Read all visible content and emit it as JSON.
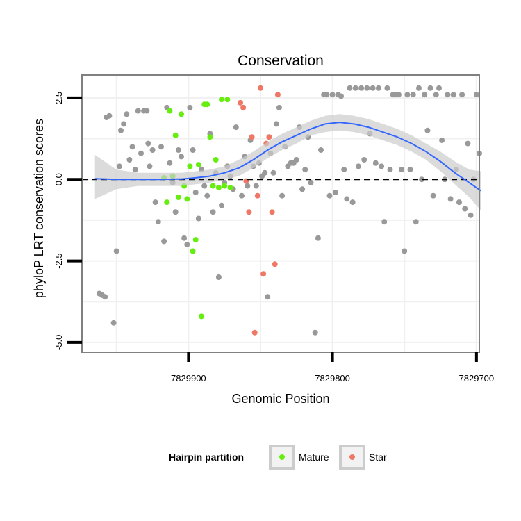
{
  "chart_data": {
    "type": "scatter",
    "title": "Conservation",
    "xlabel": "Genomic Position",
    "ylabel": "phyloP LRT conservation scores",
    "x_reversed": true,
    "xlim": [
      7829974,
      7829698
    ],
    "ylim": [
      -5.3,
      3.2
    ],
    "x_ticks": [
      7829900,
      7829800,
      7829700
    ],
    "x_tick_labels": [
      "7829900",
      "7829800",
      "7829700"
    ],
    "y_ticks": [
      -5.0,
      -2.5,
      0.0,
      2.5
    ],
    "y_tick_labels": [
      "-5.0",
      "-2.5",
      "0.0",
      "2.5"
    ],
    "reference_line": {
      "y": 0,
      "style": "dashed",
      "color": "#000000"
    },
    "legend": {
      "title": "Hairpin partition",
      "position": "bottom",
      "entries": [
        {
          "label": "Mature",
          "color": "#66ee11"
        },
        {
          "label": "Star",
          "color": "#ee7766"
        }
      ]
    },
    "colors": {
      "other": "#999999",
      "smooth_line": "#3366ff",
      "ribbon": "#cccccc"
    },
    "series": [
      {
        "name": "",
        "group": "other",
        "points": [
          [
            7829962,
            -3.5
          ],
          [
            7829960,
            -3.55
          ],
          [
            7829958,
            -3.6
          ],
          [
            7829957,
            1.9
          ],
          [
            7829955,
            1.95
          ],
          [
            7829952,
            -4.4
          ],
          [
            7829950,
            -2.2
          ],
          [
            7829948,
            0.4
          ],
          [
            7829947,
            1.5
          ],
          [
            7829945,
            1.7
          ],
          [
            7829943,
            2.0
          ],
          [
            7829941,
            0.6
          ],
          [
            7829939,
            1.0
          ],
          [
            7829937,
            0.3
          ],
          [
            7829935,
            2.1
          ],
          [
            7829933,
            0.8
          ],
          [
            7829931,
            2.1
          ],
          [
            7829929,
            2.1
          ],
          [
            7829928,
            1.1
          ],
          [
            7829927,
            0.4
          ],
          [
            7829925,
            0.9
          ],
          [
            7829923,
            -0.7
          ],
          [
            7829921,
            -1.3
          ],
          [
            7829919,
            1.0
          ],
          [
            7829917,
            -1.9
          ],
          [
            7829915,
            2.2
          ],
          [
            7829913,
            0.5
          ],
          [
            7829911,
            -0.1
          ],
          [
            7829909,
            -1.0
          ],
          [
            7829907,
            0.9
          ],
          [
            7829905,
            0.7
          ],
          [
            7829903,
            -1.8
          ],
          [
            7829901,
            -2.0
          ],
          [
            7829899,
            2.2
          ],
          [
            7829897,
            0.9
          ],
          [
            7829895,
            -0.4
          ],
          [
            7829893,
            -1.2
          ],
          [
            7829891,
            0.3
          ],
          [
            7829889,
            -0.2
          ],
          [
            7829887,
            -0.5
          ],
          [
            7829885,
            1.4
          ],
          [
            7829883,
            -1.0
          ],
          [
            7829881,
            0.2
          ],
          [
            7829879,
            -3.0
          ],
          [
            7829877,
            -0.8
          ],
          [
            7829875,
            -0.1
          ],
          [
            7829873,
            0.4
          ],
          [
            7829871,
            0.1
          ],
          [
            7829869,
            -0.3
          ],
          [
            7829867,
            1.6
          ],
          [
            7829863,
            -0.5
          ],
          [
            7829861,
            0.7
          ],
          [
            7829859,
            -0.2
          ],
          [
            7829857,
            1.2
          ],
          [
            7829855,
            0.4
          ],
          [
            7829853,
            -0.2
          ],
          [
            7829851,
            0.5
          ],
          [
            7829849,
            0.1
          ],
          [
            7829847,
            0.2
          ],
          [
            7829845,
            -3.6
          ],
          [
            7829843,
            0.8
          ],
          [
            7829841,
            0.2
          ],
          [
            7829839,
            1.7
          ],
          [
            7829837,
            2.2
          ],
          [
            7829835,
            -0.5
          ],
          [
            7829833,
            1.0
          ],
          [
            7829831,
            0.4
          ],
          [
            7829829,
            0.5
          ],
          [
            7829827,
            0.5
          ],
          [
            7829825,
            0.6
          ],
          [
            7829823,
            1.6
          ],
          [
            7829821,
            -0.3
          ],
          [
            7829819,
            0.3
          ],
          [
            7829817,
            1.3
          ],
          [
            7829815,
            -0.1
          ],
          [
            7829812,
            -4.7
          ],
          [
            7829810,
            -1.8
          ],
          [
            7829808,
            0.9
          ],
          [
            7829806,
            2.6
          ],
          [
            7829804,
            2.6
          ],
          [
            7829802,
            -0.5
          ],
          [
            7829800,
            2.6
          ],
          [
            7829798,
            -0.4
          ],
          [
            7829796,
            2.6
          ],
          [
            7829794,
            2.55
          ],
          [
            7829792,
            0.3
          ],
          [
            7829790,
            -0.6
          ],
          [
            7829788,
            2.8
          ],
          [
            7829786,
            -0.7
          ],
          [
            7829784,
            2.8
          ],
          [
            7829782,
            0.4
          ],
          [
            7829780,
            2.8
          ],
          [
            7829778,
            0.6
          ],
          [
            7829776,
            2.8
          ],
          [
            7829774,
            1.4
          ],
          [
            7829772,
            2.8
          ],
          [
            7829770,
            0.5
          ],
          [
            7829768,
            2.8
          ],
          [
            7829766,
            0.4
          ],
          [
            7829764,
            -1.3
          ],
          [
            7829762,
            2.8
          ],
          [
            7829760,
            0.3
          ],
          [
            7829758,
            2.6
          ],
          [
            7829756,
            2.6
          ],
          [
            7829754,
            2.6
          ],
          [
            7829752,
            0.3
          ],
          [
            7829750,
            -2.2
          ],
          [
            7829748,
            2.6
          ],
          [
            7829746,
            0.3
          ],
          [
            7829744,
            2.6
          ],
          [
            7829742,
            -1.3
          ],
          [
            7829740,
            2.8
          ],
          [
            7829738,
            0.0
          ],
          [
            7829736,
            2.6
          ],
          [
            7829734,
            1.5
          ],
          [
            7829732,
            2.8
          ],
          [
            7829730,
            -0.5
          ],
          [
            7829728,
            2.6
          ],
          [
            7829726,
            2.8
          ],
          [
            7829724,
            1.2
          ],
          [
            7829722,
            0.0
          ],
          [
            7829720,
            2.6
          ],
          [
            7829718,
            -0.6
          ],
          [
            7829716,
            2.6
          ],
          [
            7829714,
            0.3
          ],
          [
            7829712,
            -0.7
          ],
          [
            7829710,
            2.6
          ],
          [
            7829708,
            -0.9
          ],
          [
            7829706,
            1.1
          ],
          [
            7829704,
            -1.1
          ],
          [
            7829702,
            0.0
          ],
          [
            7829700,
            2.6
          ],
          [
            7829698,
            0.8
          ]
        ]
      },
      {
        "name": "Mature",
        "group": "Mature",
        "points": [
          [
            7829917,
            0.05
          ],
          [
            7829915,
            -0.7
          ],
          [
            7829913,
            2.1
          ],
          [
            7829911,
            0.1
          ],
          [
            7829909,
            1.35
          ],
          [
            7829907,
            -0.55
          ],
          [
            7829905,
            2.0
          ],
          [
            7829903,
            -0.2
          ],
          [
            7829901,
            -0.6
          ],
          [
            7829899,
            0.4
          ],
          [
            7829897,
            -2.2
          ],
          [
            7829895,
            -1.85
          ],
          [
            7829893,
            0.45
          ],
          [
            7829891,
            -4.2
          ],
          [
            7829889,
            2.3
          ],
          [
            7829887,
            2.3
          ],
          [
            7829885,
            1.3
          ],
          [
            7829883,
            -0.2
          ],
          [
            7829881,
            0.6
          ],
          [
            7829879,
            -0.25
          ],
          [
            7829877,
            2.45
          ],
          [
            7829875,
            -0.2
          ],
          [
            7829873,
            2.45
          ],
          [
            7829871,
            -0.25
          ]
        ]
      },
      {
        "name": "Star",
        "group": "Star",
        "points": [
          [
            7829864,
            2.35
          ],
          [
            7829862,
            2.2
          ],
          [
            7829860,
            -0.05
          ],
          [
            7829858,
            -1.0
          ],
          [
            7829856,
            1.3
          ],
          [
            7829854,
            -4.7
          ],
          [
            7829852,
            -0.5
          ],
          [
            7829850,
            2.8
          ],
          [
            7829848,
            -2.9
          ],
          [
            7829846,
            1.1
          ],
          [
            7829844,
            1.3
          ],
          [
            7829842,
            -1.0
          ],
          [
            7829840,
            -2.6
          ],
          [
            7829838,
            2.6
          ]
        ]
      }
    ],
    "smooth": {
      "x": [
        7829965,
        7829950,
        7829935,
        7829920,
        7829905,
        7829895,
        7829885,
        7829875,
        7829865,
        7829855,
        7829845,
        7829835,
        7829825,
        7829815,
        7829805,
        7829795,
        7829785,
        7829775,
        7829765,
        7829755,
        7829745,
        7829735,
        7829725,
        7829715,
        7829705,
        7829697
      ],
      "y": [
        0.02,
        0.0,
        0.0,
        0.0,
        0.01,
        0.05,
        0.1,
        0.2,
        0.35,
        0.6,
        0.9,
        1.15,
        1.35,
        1.55,
        1.7,
        1.75,
        1.7,
        1.6,
        1.45,
        1.3,
        1.1,
        0.85,
        0.55,
        0.2,
        -0.1,
        -0.35
      ],
      "lower": [
        -0.6,
        -0.3,
        -0.2,
        -0.2,
        -0.2,
        -0.15,
        -0.1,
        0.0,
        0.1,
        0.35,
        0.65,
        0.9,
        1.1,
        1.35,
        1.45,
        1.5,
        1.45,
        1.35,
        1.2,
        1.05,
        0.85,
        0.6,
        0.25,
        -0.15,
        -0.55,
        -0.95
      ],
      "upper": [
        0.75,
        0.3,
        0.2,
        0.2,
        0.2,
        0.25,
        0.3,
        0.4,
        0.6,
        0.85,
        1.15,
        1.4,
        1.6,
        1.8,
        1.95,
        2.0,
        1.95,
        1.85,
        1.7,
        1.55,
        1.35,
        1.1,
        0.85,
        0.55,
        0.3,
        0.25
      ]
    }
  }
}
